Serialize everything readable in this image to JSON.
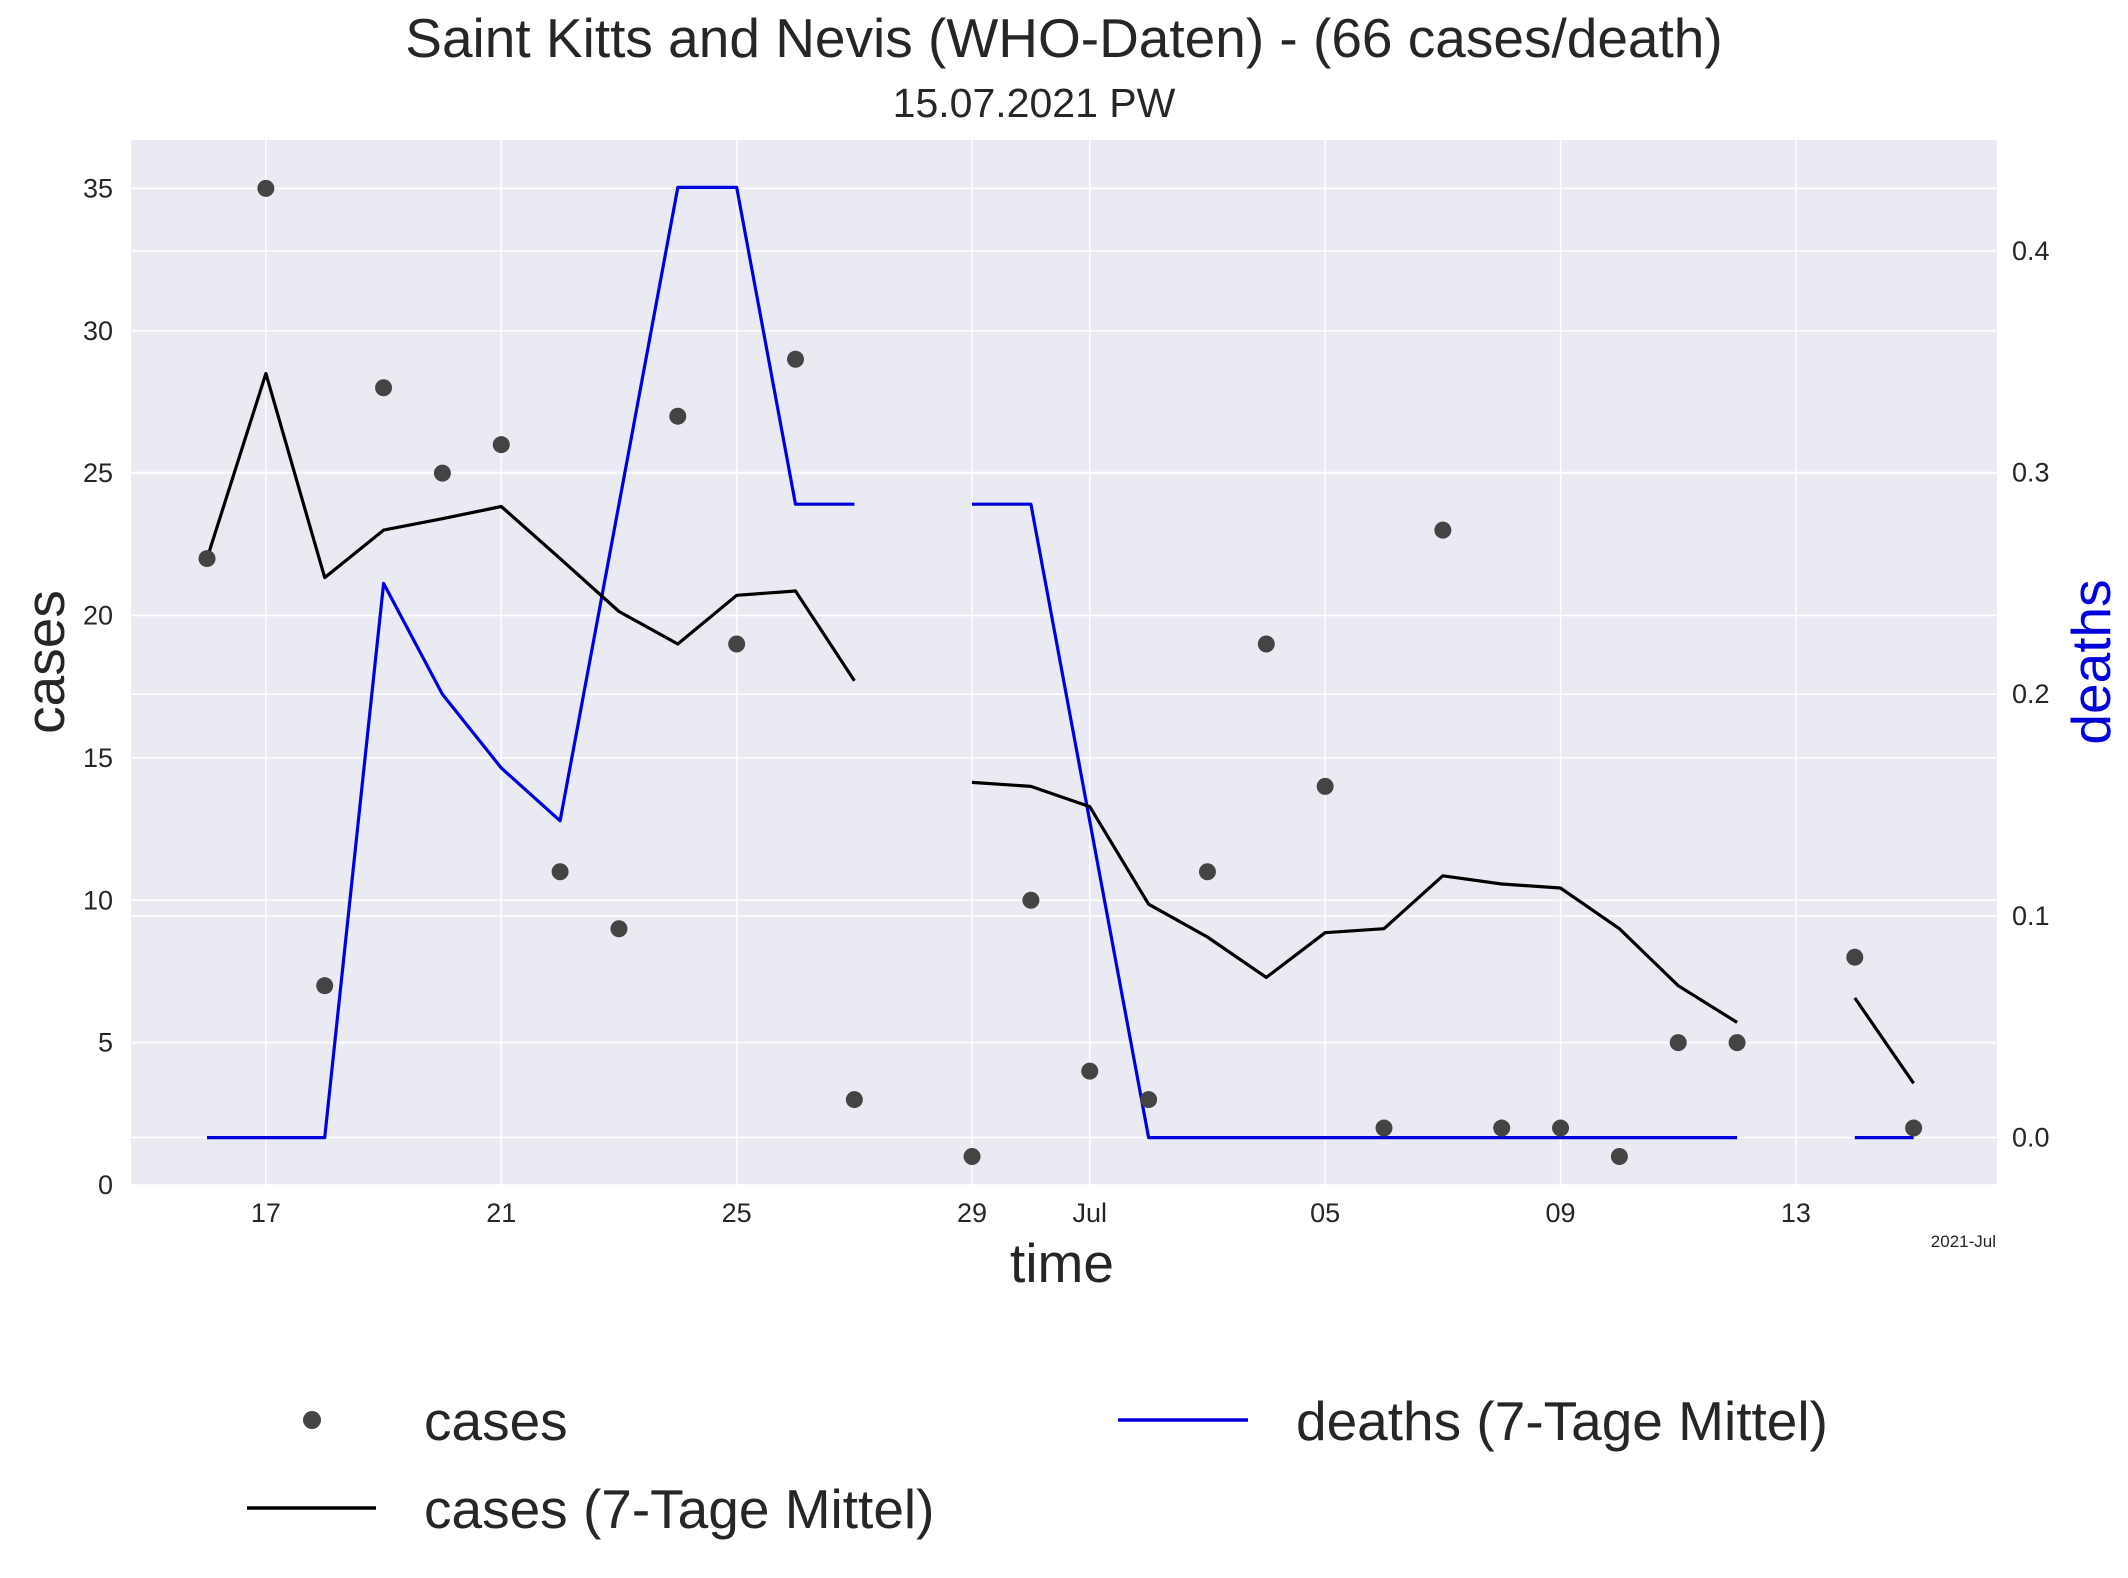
{
  "chart_data": {
    "type": "line",
    "title": "Saint Kitts and Nevis (WHO-Daten) - (66 cases/death)",
    "subtitle": "15.07.2021 PW",
    "xlabel": "time",
    "ylabel": "cases",
    "ylabel_right": "deaths",
    "x_offset_label": "2021-Jul",
    "x": [
      "2021-06-16",
      "2021-06-17",
      "2021-06-18",
      "2021-06-19",
      "2021-06-20",
      "2021-06-21",
      "2021-06-22",
      "2021-06-23",
      "2021-06-24",
      "2021-06-25",
      "2021-06-26",
      "2021-06-27",
      "2021-06-28",
      "2021-06-29",
      "2021-06-30",
      "2021-07-01",
      "2021-07-02",
      "2021-07-03",
      "2021-07-04",
      "2021-07-05",
      "2021-07-06",
      "2021-07-07",
      "2021-07-08",
      "2021-07-09",
      "2021-07-10",
      "2021-07-11",
      "2021-07-12",
      "2021-07-13",
      "2021-07-14",
      "2021-07-15"
    ],
    "x_ticks": [
      {
        "date": "2021-06-17",
        "label": "17"
      },
      {
        "date": "2021-06-21",
        "label": "21"
      },
      {
        "date": "2021-06-25",
        "label": "25"
      },
      {
        "date": "2021-06-29",
        "label": "29"
      },
      {
        "date": "2021-07-01",
        "label": "Jul"
      },
      {
        "date": "2021-07-05",
        "label": "05"
      },
      {
        "date": "2021-07-09",
        "label": "09"
      },
      {
        "date": "2021-07-13",
        "label": "13"
      }
    ],
    "xlim": [
      "2021-06-14T17:00",
      "2021-07-16T10:00"
    ],
    "ylim": [
      0,
      36.7
    ],
    "ylim_right": [
      -0.0214,
      0.45
    ],
    "y_ticks": [
      0,
      5,
      10,
      15,
      20,
      25,
      30,
      35
    ],
    "y_ticks_right": [
      0.0,
      0.1,
      0.2,
      0.3,
      0.4
    ],
    "y_tick_labels_right": [
      "0.0",
      "0.1",
      "0.2",
      "0.3",
      "0.4"
    ],
    "grid": true,
    "legend_position": "bottom",
    "series": [
      {
        "name": "cases",
        "kind": "scatter",
        "axis": "left",
        "color": "#444444",
        "values": [
          22,
          35,
          7,
          28,
          25,
          26,
          11,
          9,
          27,
          19,
          29,
          3,
          null,
          1,
          10,
          4,
          3,
          11,
          19,
          14,
          2,
          23,
          2,
          2,
          1,
          5,
          5,
          null,
          8,
          2
        ]
      },
      {
        "name": "cases (7-Tage Mittel)",
        "kind": "line",
        "axis": "left",
        "color": "#000000",
        "values": [
          22,
          28.5,
          21.33,
          23.0,
          23.4,
          23.83,
          22.0,
          20.14,
          19.0,
          20.71,
          20.86,
          17.71,
          null,
          14.14,
          14.0,
          13.29,
          9.86,
          8.71,
          7.29,
          8.86,
          9.0,
          10.86,
          10.57,
          10.43,
          9.0,
          7.0,
          5.71,
          null,
          6.57,
          3.57
        ]
      },
      {
        "name": "deaths (7-Tage Mittel)",
        "kind": "line",
        "axis": "right",
        "color": "#0000dd",
        "values": [
          0,
          0,
          0,
          0.25,
          0.2,
          0.1667,
          0.1429,
          0.2857,
          0.4286,
          0.4286,
          0.2857,
          0.2857,
          null,
          0.2857,
          0.2857,
          0.1429,
          0,
          0,
          0,
          0,
          0,
          0,
          0,
          0,
          0,
          0,
          0,
          null,
          0,
          0
        ]
      }
    ]
  },
  "colors": {
    "plot_background": "#eaeaf2",
    "grid": "#ffffff",
    "deaths_axis_label": "#0000dd"
  }
}
